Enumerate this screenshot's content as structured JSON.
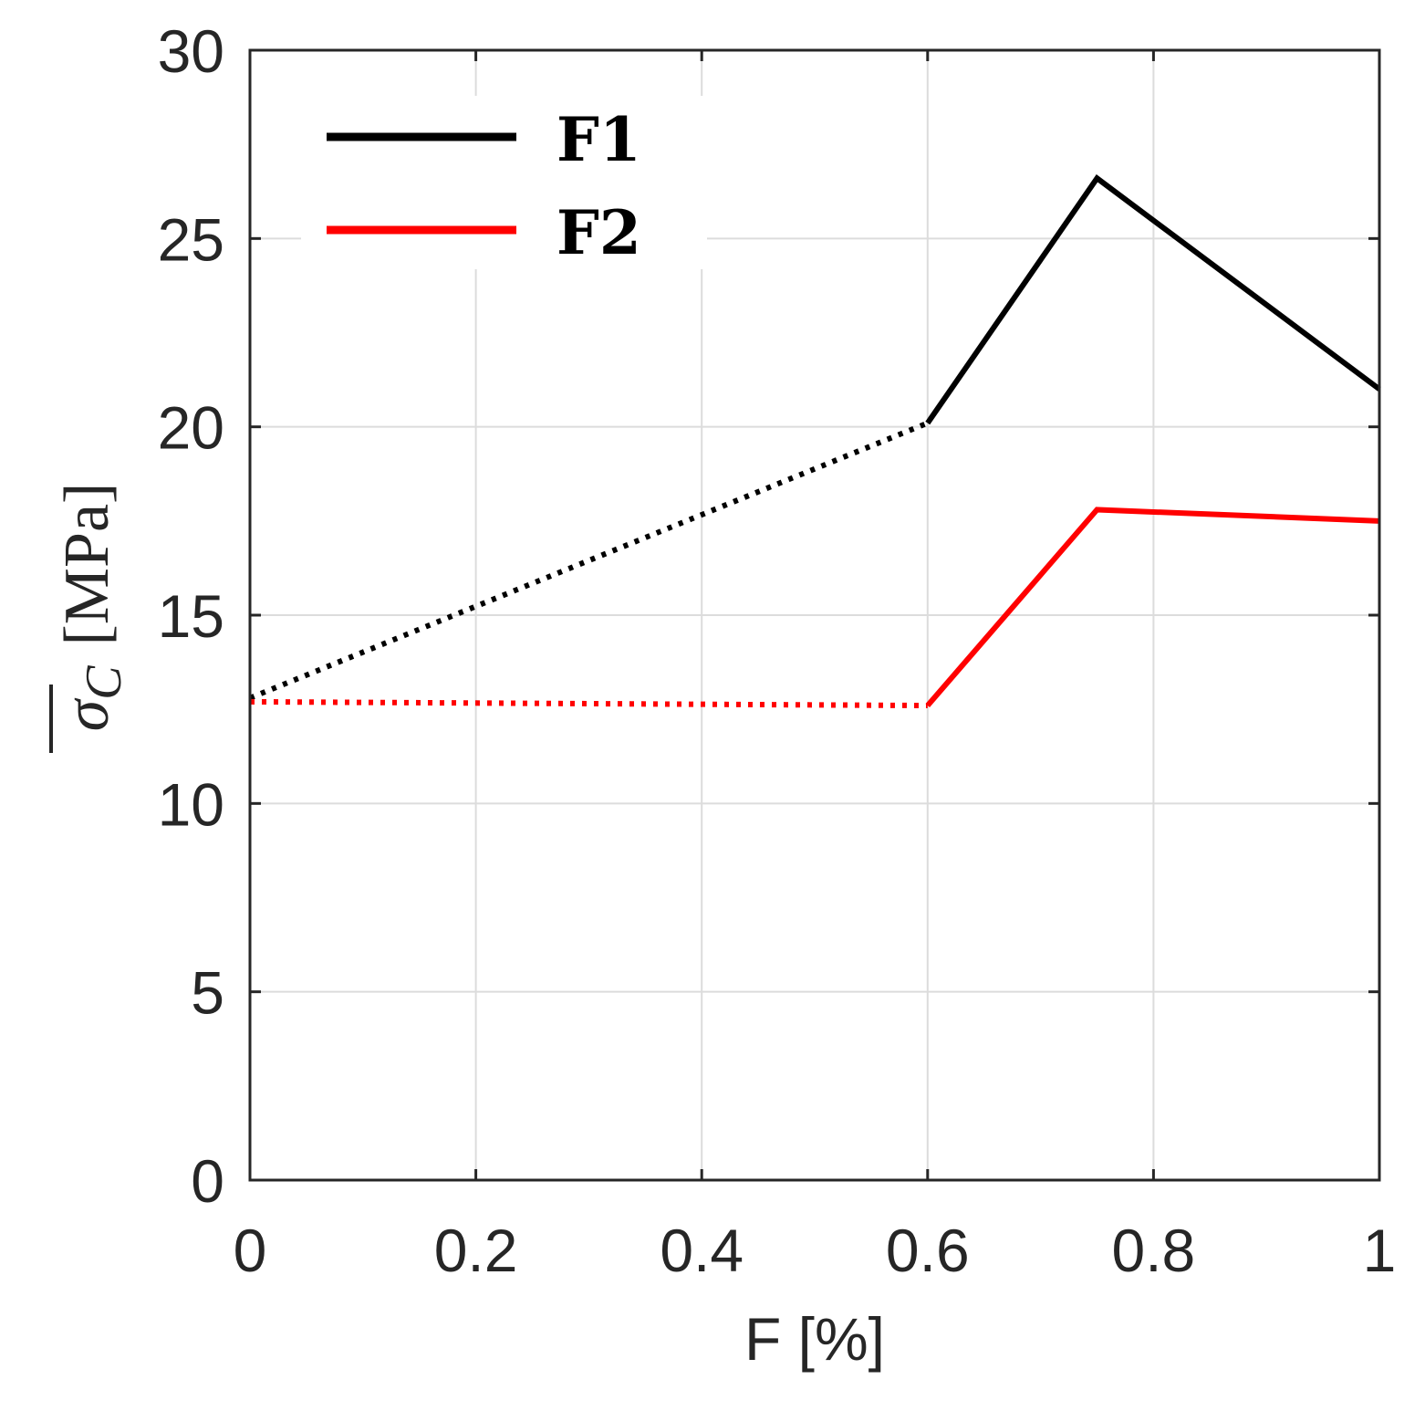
{
  "chart_data": {
    "type": "line",
    "title": "",
    "xlabel": "F [%]",
    "ylabel": {
      "symbol": "σ",
      "subscript": "C",
      "unit": "[MPa]"
    },
    "xlim": [
      0,
      1
    ],
    "ylim": [
      0,
      30
    ],
    "xticks": [
      0,
      0.2,
      0.4,
      0.6,
      0.8,
      1
    ],
    "xtick_labels": [
      "0",
      "0.2",
      "0.4",
      "0.6",
      "0.8",
      "1"
    ],
    "yticks": [
      0,
      5,
      10,
      15,
      20,
      25,
      30
    ],
    "ytick_labels": [
      "0",
      "5",
      "10",
      "15",
      "20",
      "25",
      "30"
    ],
    "grid": true,
    "legend_position": "top-left",
    "series": [
      {
        "name": "F1",
        "color": "#000000",
        "dotted_segment": {
          "x": [
            0,
            0.6
          ],
          "y": [
            12.8,
            20.1
          ]
        },
        "solid_segment": {
          "x": [
            0.6,
            0.75,
            1.0
          ],
          "y": [
            20.1,
            26.6,
            21.0
          ]
        }
      },
      {
        "name": "F2",
        "color": "#ff0000",
        "dotted_segment": {
          "x": [
            0,
            0.6
          ],
          "y": [
            12.7,
            12.6
          ]
        },
        "solid_segment": {
          "x": [
            0.6,
            0.75,
            1.0
          ],
          "y": [
            12.6,
            17.8,
            17.5
          ]
        }
      }
    ]
  }
}
